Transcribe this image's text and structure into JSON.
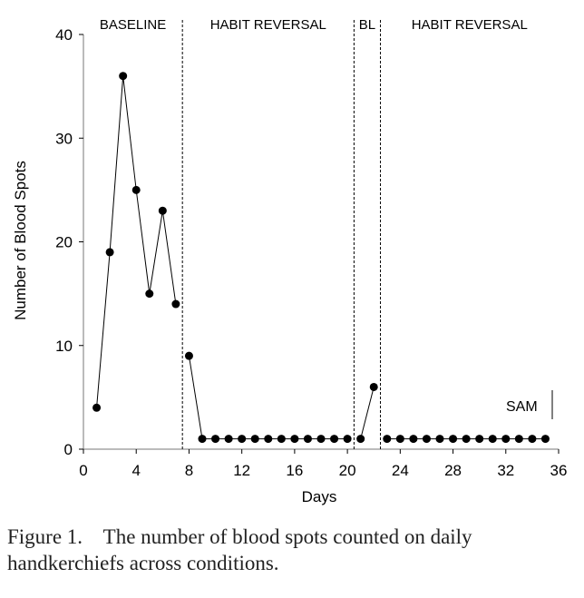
{
  "chart_data": {
    "type": "line",
    "xlabel": "Days",
    "ylabel": "Number of Blood Spots",
    "xlim": [
      0,
      36
    ],
    "ylim": [
      0,
      40
    ],
    "xticks": [
      0,
      4,
      8,
      12,
      16,
      20,
      24,
      28,
      32,
      36
    ],
    "yticks": [
      0,
      10,
      20,
      30,
      40
    ],
    "grid": false,
    "phases": [
      {
        "label": "BASELINE",
        "start": 0,
        "end": 7.5
      },
      {
        "label": "HABIT REVERSAL",
        "start": 7.5,
        "end": 20.5
      },
      {
        "label": "BL",
        "start": 20.5,
        "end": 22.5
      },
      {
        "label": "HABIT REVERSAL",
        "start": 22.5,
        "end": 36
      }
    ],
    "phase_change_lines": [
      7.5,
      20.5,
      22.5
    ],
    "annotation": "SAM",
    "series": [
      {
        "x": [
          1,
          2,
          3,
          4,
          5,
          6,
          7,
          8,
          9,
          10,
          11,
          12,
          13,
          14,
          15,
          16,
          17,
          18,
          19,
          20,
          21,
          22,
          23,
          24,
          25,
          26,
          27,
          28,
          29,
          30,
          31,
          32,
          33,
          34,
          35
        ],
        "y": [
          4,
          19,
          36,
          25,
          15,
          23,
          14,
          9,
          1,
          1,
          1,
          1,
          1,
          1,
          1,
          1,
          1,
          1,
          1,
          1,
          1,
          6,
          1,
          1,
          1,
          1,
          1,
          1,
          1,
          1,
          1,
          1,
          1,
          1,
          1
        ]
      }
    ]
  },
  "caption": {
    "label": "Figure 1.",
    "text": "The number of blood spots counted on daily handkerchiefs across conditions."
  }
}
